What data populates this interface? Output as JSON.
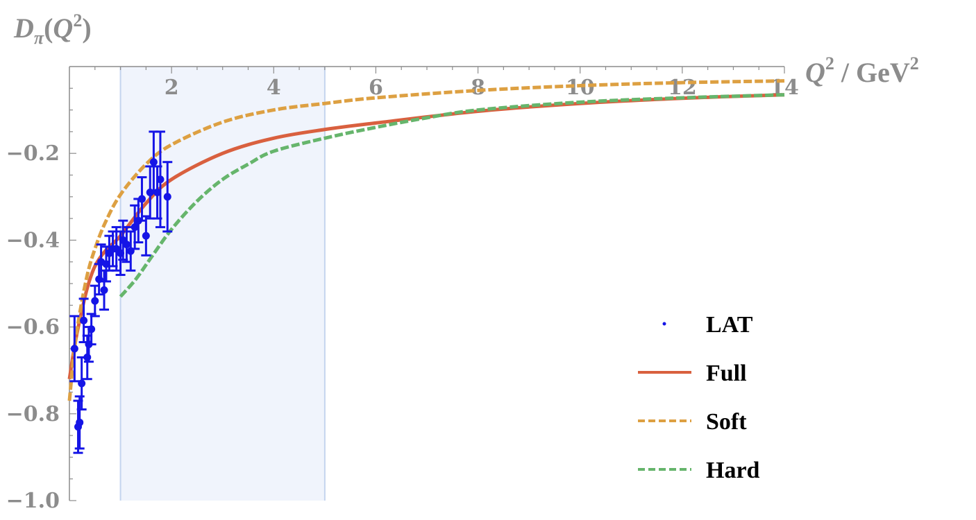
{
  "chart_data": {
    "type": "line",
    "title": "",
    "xlabel": {
      "var": "Q",
      "sup": "2",
      "sep": " / ",
      "unit": "GeV",
      "unit_sup": "2"
    },
    "ylabel": {
      "var": "D",
      "sub": "π",
      "open": "(",
      "arg": "Q",
      "arg_sup": "2",
      "close": ")"
    },
    "xlim": [
      0,
      14
    ],
    "ylim": [
      -1.0,
      0
    ],
    "grid": false,
    "x_ticks": [
      2,
      4,
      6,
      8,
      10,
      12,
      14
    ],
    "x_tick_labels": [
      "2",
      "4",
      "6",
      "8",
      "10",
      "12",
      "14"
    ],
    "y_ticks": [
      -0.2,
      -0.4,
      -0.6,
      -0.8,
      -1.0
    ],
    "y_tick_labels": [
      "−0.2",
      "−0.4",
      "−0.6",
      "−0.8",
      "−1.0"
    ],
    "shaded_band": {
      "x_from": 1,
      "x_to": 5,
      "color": "#f0f4fc",
      "edge_color": "#c4d4ee"
    },
    "legend_position": "bottom-right",
    "series": [
      {
        "name": "LAT",
        "kind": "points",
        "color": "#1515e6",
        "points": [
          {
            "x": 0.1,
            "y": -0.65,
            "err": 0.075
          },
          {
            "x": 0.17,
            "y": -0.83,
            "err": 0.06
          },
          {
            "x": 0.2,
            "y": -0.82,
            "err": 0.06
          },
          {
            "x": 0.24,
            "y": -0.73,
            "err": 0.06
          },
          {
            "x": 0.28,
            "y": -0.585,
            "err": 0.05
          },
          {
            "x": 0.35,
            "y": -0.67,
            "err": 0.05
          },
          {
            "x": 0.38,
            "y": -0.64,
            "err": 0.04
          },
          {
            "x": 0.43,
            "y": -0.605,
            "err": 0.035
          },
          {
            "x": 0.5,
            "y": -0.54,
            "err": 0.035
          },
          {
            "x": 0.58,
            "y": -0.49,
            "err": 0.035
          },
          {
            "x": 0.62,
            "y": -0.45,
            "err": 0.04
          },
          {
            "x": 0.68,
            "y": -0.515,
            "err": 0.045
          },
          {
            "x": 0.72,
            "y": -0.455,
            "err": 0.04
          },
          {
            "x": 0.78,
            "y": -0.43,
            "err": 0.04
          },
          {
            "x": 0.85,
            "y": -0.42,
            "err": 0.04
          },
          {
            "x": 0.92,
            "y": -0.42,
            "err": 0.05
          },
          {
            "x": 1.0,
            "y": -0.43,
            "err": 0.05
          },
          {
            "x": 1.05,
            "y": -0.4,
            "err": 0.045
          },
          {
            "x": 1.12,
            "y": -0.41,
            "err": 0.04
          },
          {
            "x": 1.2,
            "y": -0.425,
            "err": 0.045
          },
          {
            "x": 1.28,
            "y": -0.37,
            "err": 0.05
          },
          {
            "x": 1.35,
            "y": -0.355,
            "err": 0.05
          },
          {
            "x": 1.42,
            "y": -0.305,
            "err": 0.05
          },
          {
            "x": 1.5,
            "y": -0.39,
            "err": 0.045
          },
          {
            "x": 1.58,
            "y": -0.29,
            "err": 0.06
          },
          {
            "x": 1.65,
            "y": -0.22,
            "err": 0.07
          },
          {
            "x": 1.72,
            "y": -0.29,
            "err": 0.06
          },
          {
            "x": 1.78,
            "y": -0.26,
            "err": 0.11
          },
          {
            "x": 1.92,
            "y": -0.3,
            "err": 0.08
          }
        ]
      },
      {
        "name": "Full",
        "kind": "line",
        "style": "solid",
        "color": "#d9603f",
        "x": [
          0.0,
          0.1,
          0.2,
          0.35,
          0.5,
          0.7,
          1.0,
          1.5,
          2.0,
          3.0,
          4.0,
          5.0,
          6.0,
          8.0,
          10.0,
          12.0,
          14.0
        ],
        "y": [
          -0.72,
          -0.645,
          -0.585,
          -0.51,
          -0.46,
          -0.425,
          -0.39,
          -0.315,
          -0.26,
          -0.2,
          -0.165,
          -0.145,
          -0.13,
          -0.103,
          -0.085,
          -0.073,
          -0.065
        ]
      },
      {
        "name": "Soft",
        "kind": "line",
        "style": "dashed",
        "color": "#dda042",
        "x": [
          0.0,
          0.1,
          0.2,
          0.35,
          0.5,
          0.7,
          1.0,
          1.5,
          2.0,
          3.0,
          4.0,
          5.0,
          6.0,
          8.0,
          10.0,
          12.0,
          14.0
        ],
        "y": [
          -0.77,
          -0.65,
          -0.57,
          -0.48,
          -0.42,
          -0.36,
          -0.295,
          -0.225,
          -0.18,
          -0.128,
          -0.1,
          -0.085,
          -0.072,
          -0.055,
          -0.044,
          -0.037,
          -0.033
        ]
      },
      {
        "name": "Hard",
        "kind": "line",
        "style": "dashed",
        "color": "#66b56c",
        "x": [
          1.0,
          1.3,
          1.6,
          2.0,
          2.5,
          3.0,
          3.5,
          4.0,
          5.0,
          6.0,
          7.0,
          8.0,
          10.0,
          12.0,
          14.0
        ],
        "y": [
          -0.53,
          -0.49,
          -0.44,
          -0.375,
          -0.31,
          -0.26,
          -0.225,
          -0.195,
          -0.165,
          -0.14,
          -0.118,
          -0.1,
          -0.082,
          -0.072,
          -0.065
        ]
      }
    ]
  }
}
